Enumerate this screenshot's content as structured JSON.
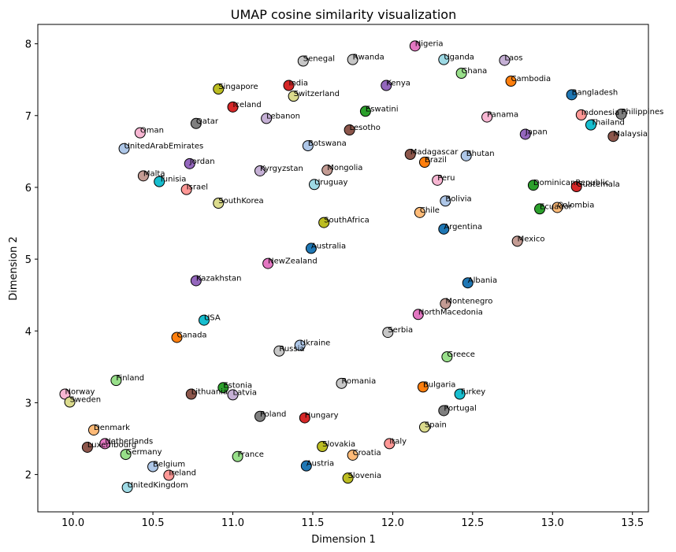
{
  "chart_data": {
    "type": "scatter",
    "title": "UMAP cosine similarity visualization",
    "xlabel": "Dimension 1",
    "ylabel": "Dimension 2",
    "xlim": [
      9.78,
      13.6
    ],
    "ylim": [
      1.48,
      8.27
    ],
    "xticks": [
      "10.0",
      "10.5",
      "11.0",
      "11.5",
      "12.0",
      "12.5",
      "13.0",
      "13.5"
    ],
    "yticks": [
      "2",
      "3",
      "4",
      "5",
      "6",
      "7",
      "8"
    ],
    "grid": false,
    "legend": "none",
    "points": [
      {
        "label": "Nigeria",
        "x": 12.14,
        "y": 7.97,
        "color": "#e377c2"
      },
      {
        "label": "Senegal",
        "x": 11.44,
        "y": 7.76,
        "color": "#c7c7c7"
      },
      {
        "label": "Rwanda",
        "x": 11.75,
        "y": 7.78,
        "color": "#c7c7c7"
      },
      {
        "label": "Uganda",
        "x": 12.32,
        "y": 7.78,
        "color": "#9edae5"
      },
      {
        "label": "Laos",
        "x": 12.7,
        "y": 7.77,
        "color": "#c5b0d5"
      },
      {
        "label": "Ghana",
        "x": 12.43,
        "y": 7.59,
        "color": "#98df8a"
      },
      {
        "label": "Cambodia",
        "x": 12.74,
        "y": 7.48,
        "color": "#ff7f0e"
      },
      {
        "label": "India",
        "x": 11.35,
        "y": 7.42,
        "color": "#d62728"
      },
      {
        "label": "Kenya",
        "x": 11.96,
        "y": 7.42,
        "color": "#9467bd"
      },
      {
        "label": "Singapore",
        "x": 10.91,
        "y": 7.37,
        "color": "#bcbd22"
      },
      {
        "label": "Switzerland",
        "x": 11.38,
        "y": 7.27,
        "color": "#dbdb8d"
      },
      {
        "label": "Bangladesh",
        "x": 13.12,
        "y": 7.29,
        "color": "#1f77b4"
      },
      {
        "label": "Iceland",
        "x": 11.0,
        "y": 7.12,
        "color": "#d62728"
      },
      {
        "label": "Eswatini",
        "x": 11.83,
        "y": 7.06,
        "color": "#2ca02c"
      },
      {
        "label": "Lebanon",
        "x": 11.21,
        "y": 6.96,
        "color": "#c5b0d5"
      },
      {
        "label": "Indonesia",
        "x": 13.18,
        "y": 7.01,
        "color": "#ff9896"
      },
      {
        "label": "Philippines",
        "x": 13.43,
        "y": 7.02,
        "color": "#7f7f7f"
      },
      {
        "label": "Panama",
        "x": 12.59,
        "y": 6.98,
        "color": "#f7b6d2"
      },
      {
        "label": "Qatar",
        "x": 10.77,
        "y": 6.89,
        "color": "#7f7f7f"
      },
      {
        "label": "Thailand",
        "x": 13.24,
        "y": 6.87,
        "color": "#17becf"
      },
      {
        "label": "Lesotho",
        "x": 11.73,
        "y": 6.8,
        "color": "#8c564b"
      },
      {
        "label": "Oman",
        "x": 10.42,
        "y": 6.76,
        "color": "#f7b6d2"
      },
      {
        "label": "Japan",
        "x": 12.83,
        "y": 6.74,
        "color": "#9467bd"
      },
      {
        "label": "Malaysia",
        "x": 13.38,
        "y": 6.71,
        "color": "#8c564b"
      },
      {
        "label": "Botswana",
        "x": 11.47,
        "y": 6.58,
        "color": "#aec7e8"
      },
      {
        "label": "UnitedArabEmirates",
        "x": 10.32,
        "y": 6.54,
        "color": "#aec7e8"
      },
      {
        "label": "Madagascar",
        "x": 12.11,
        "y": 6.46,
        "color": "#8c564b"
      },
      {
        "label": "Bhutan",
        "x": 12.46,
        "y": 6.44,
        "color": "#aec7e8"
      },
      {
        "label": "Brazil",
        "x": 12.2,
        "y": 6.35,
        "color": "#ff7f0e"
      },
      {
        "label": "Jordan",
        "x": 10.73,
        "y": 6.33,
        "color": "#9467bd"
      },
      {
        "label": "Kyrgyzstan",
        "x": 11.17,
        "y": 6.23,
        "color": "#c5b0d5"
      },
      {
        "label": "Mongolia",
        "x": 11.59,
        "y": 6.24,
        "color": "#c49c94"
      },
      {
        "label": "Malta",
        "x": 10.44,
        "y": 6.16,
        "color": "#c49c94"
      },
      {
        "label": "Tunisia",
        "x": 10.54,
        "y": 6.08,
        "color": "#17becf"
      },
      {
        "label": "Peru",
        "x": 12.28,
        "y": 6.1,
        "color": "#f7b6d2"
      },
      {
        "label": "Uruguay",
        "x": 11.51,
        "y": 6.04,
        "color": "#9edae5"
      },
      {
        "label": "DominicanRepublic",
        "x": 12.88,
        "y": 6.03,
        "color": "#2ca02c"
      },
      {
        "label": "Guatemala",
        "x": 13.15,
        "y": 6.01,
        "color": "#d62728"
      },
      {
        "label": "Israel",
        "x": 10.71,
        "y": 5.97,
        "color": "#ff9896"
      },
      {
        "label": "Bolivia",
        "x": 12.33,
        "y": 5.81,
        "color": "#aec7e8"
      },
      {
        "label": "SouthKorea",
        "x": 10.91,
        "y": 5.78,
        "color": "#dbdb8d"
      },
      {
        "label": "Ecuador",
        "x": 12.92,
        "y": 5.7,
        "color": "#2ca02c"
      },
      {
        "label": "Colombia",
        "x": 13.03,
        "y": 5.72,
        "color": "#ffbb78"
      },
      {
        "label": "Chile",
        "x": 12.17,
        "y": 5.65,
        "color": "#ffbb78"
      },
      {
        "label": "SouthAfrica",
        "x": 11.57,
        "y": 5.51,
        "color": "#bcbd22"
      },
      {
        "label": "Argentina",
        "x": 12.32,
        "y": 5.42,
        "color": "#1f77b4"
      },
      {
        "label": "Mexico",
        "x": 12.78,
        "y": 5.25,
        "color": "#c49c94"
      },
      {
        "label": "Australia",
        "x": 11.49,
        "y": 5.15,
        "color": "#1f77b4"
      },
      {
        "label": "NewZealand",
        "x": 11.22,
        "y": 4.94,
        "color": "#e377c2"
      },
      {
        "label": "Kazakhstan",
        "x": 10.77,
        "y": 4.7,
        "color": "#9467bd"
      },
      {
        "label": "Albania",
        "x": 12.47,
        "y": 4.67,
        "color": "#1f77b4"
      },
      {
        "label": "Montenegro",
        "x": 12.33,
        "y": 4.38,
        "color": "#c49c94"
      },
      {
        "label": "NorthMacedonia",
        "x": 12.16,
        "y": 4.23,
        "color": "#e377c2"
      },
      {
        "label": "USA",
        "x": 10.82,
        "y": 4.15,
        "color": "#17becf"
      },
      {
        "label": "Serbia",
        "x": 11.97,
        "y": 3.98,
        "color": "#c7c7c7"
      },
      {
        "label": "Canada",
        "x": 10.65,
        "y": 3.91,
        "color": "#ff7f0e"
      },
      {
        "label": "Ukraine",
        "x": 11.42,
        "y": 3.8,
        "color": "#aec7e8"
      },
      {
        "label": "Russia",
        "x": 11.29,
        "y": 3.72,
        "color": "#c7c7c7"
      },
      {
        "label": "Greece",
        "x": 12.34,
        "y": 3.64,
        "color": "#98df8a"
      },
      {
        "label": "Finland",
        "x": 10.27,
        "y": 3.31,
        "color": "#98df8a"
      },
      {
        "label": "Romania",
        "x": 11.68,
        "y": 3.27,
        "color": "#c7c7c7"
      },
      {
        "label": "Estonia",
        "x": 10.94,
        "y": 3.21,
        "color": "#2ca02c"
      },
      {
        "label": "Bulgaria",
        "x": 12.19,
        "y": 3.22,
        "color": "#ff7f0e"
      },
      {
        "label": "Norway",
        "x": 9.95,
        "y": 3.12,
        "color": "#f7b6d2"
      },
      {
        "label": "Lithuania",
        "x": 10.74,
        "y": 3.12,
        "color": "#8c564b"
      },
      {
        "label": "Latvia",
        "x": 11.0,
        "y": 3.11,
        "color": "#c5b0d5"
      },
      {
        "label": "Turkey",
        "x": 12.42,
        "y": 3.12,
        "color": "#17becf"
      },
      {
        "label": "Sweden",
        "x": 9.98,
        "y": 3.01,
        "color": "#dbdb8d"
      },
      {
        "label": "Portugal",
        "x": 12.32,
        "y": 2.89,
        "color": "#7f7f7f"
      },
      {
        "label": "Poland",
        "x": 11.17,
        "y": 2.81,
        "color": "#7f7f7f"
      },
      {
        "label": "Hungary",
        "x": 11.45,
        "y": 2.79,
        "color": "#d62728"
      },
      {
        "label": "Spain",
        "x": 12.2,
        "y": 2.66,
        "color": "#dbdb8d"
      },
      {
        "label": "Denmark",
        "x": 10.13,
        "y": 2.62,
        "color": "#ffbb78"
      },
      {
        "label": "Netherlands",
        "x": 10.2,
        "y": 2.43,
        "color": "#e377c2"
      },
      {
        "label": "Italy",
        "x": 11.98,
        "y": 2.43,
        "color": "#ff9896"
      },
      {
        "label": "Luxembourg",
        "x": 10.09,
        "y": 2.38,
        "color": "#8c564b"
      },
      {
        "label": "Slovakia",
        "x": 11.56,
        "y": 2.39,
        "color": "#bcbd22"
      },
      {
        "label": "Germany",
        "x": 10.33,
        "y": 2.28,
        "color": "#98df8a"
      },
      {
        "label": "France",
        "x": 11.03,
        "y": 2.25,
        "color": "#98df8a"
      },
      {
        "label": "Croatia",
        "x": 11.75,
        "y": 2.27,
        "color": "#ffbb78"
      },
      {
        "label": "Belgium",
        "x": 10.5,
        "y": 2.11,
        "color": "#aec7e8"
      },
      {
        "label": "Austria",
        "x": 11.46,
        "y": 2.12,
        "color": "#1f77b4"
      },
      {
        "label": "Ireland",
        "x": 10.6,
        "y": 1.99,
        "color": "#ff9896"
      },
      {
        "label": "Slovenia",
        "x": 11.72,
        "y": 1.95,
        "color": "#bcbd22"
      },
      {
        "label": "UnitedKingdom",
        "x": 10.34,
        "y": 1.82,
        "color": "#9edae5"
      }
    ]
  }
}
